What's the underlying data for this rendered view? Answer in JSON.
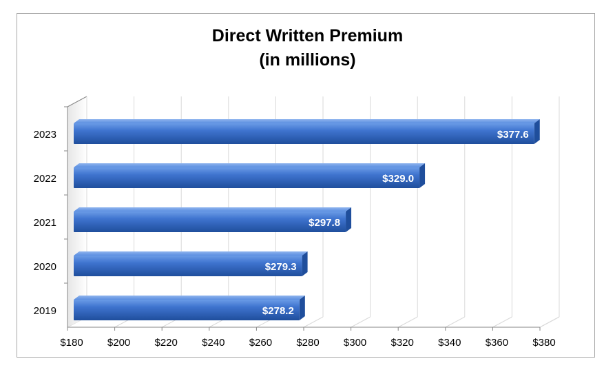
{
  "chart_data": {
    "type": "bar",
    "orientation": "horizontal",
    "title_line1": "Direct Written Premium",
    "title_line2": "(in millions)",
    "categories": [
      "2019",
      "2020",
      "2021",
      "2022",
      "2023"
    ],
    "values": [
      278.2,
      279.3,
      297.8,
      329.0,
      377.6
    ],
    "data_labels": [
      "$278.2",
      "$279.3",
      "$297.8",
      "$329.0",
      "$377.6"
    ],
    "x_ticks": [
      180,
      200,
      220,
      240,
      260,
      280,
      300,
      320,
      340,
      360,
      380
    ],
    "x_tick_labels": [
      "$180",
      "$200",
      "$220",
      "$240",
      "$260",
      "$280",
      "$300",
      "$320",
      "$340",
      "$360",
      "$380"
    ],
    "xlim": [
      180,
      380
    ],
    "grid": true,
    "legend": "none",
    "colors": {
      "bar": "#3366cc",
      "bar_dark": "#1f4e9c",
      "bar_light": "#5b8ee0",
      "grid": "#d9d9d9",
      "axis": "#868686"
    }
  }
}
